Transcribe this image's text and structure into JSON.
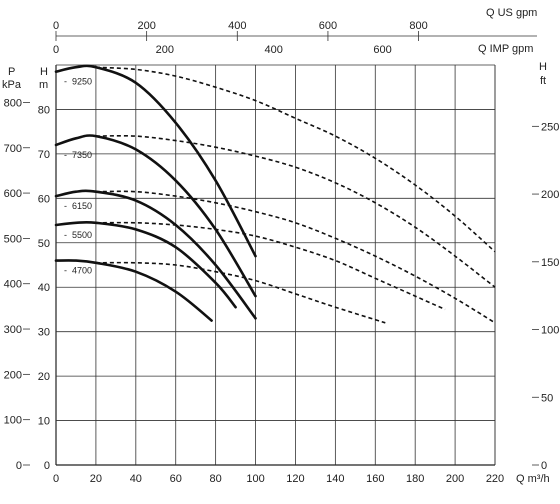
{
  "chart_data": {
    "type": "line",
    "title": "",
    "grid": true,
    "axes": {
      "x_bottom": {
        "label": "Q m³/h",
        "range": [
          0,
          220
        ],
        "ticks": [
          "0",
          "20",
          "40",
          "60",
          "80",
          "100",
          "120",
          "140",
          "160",
          "180",
          "200",
          "220"
        ]
      },
      "x_top_us": {
        "label": "Q US gpm",
        "range": [
          0,
          968.6
        ],
        "ticks": [
          "0",
          "200",
          "400",
          "600",
          "800"
        ]
      },
      "x_top_imp": {
        "label": "Q IMP gpm",
        "range": [
          0,
          806.5
        ],
        "ticks": [
          "0",
          "200",
          "400",
          "600"
        ]
      },
      "y_kpa": {
        "label_line1": "P",
        "label_line2": "kPa",
        "ticks": [
          "0",
          "100",
          "200",
          "300",
          "400",
          "500",
          "600",
          "700",
          "800"
        ]
      },
      "y_m": {
        "label": "H m",
        "label_line1": "H",
        "label_line2": "m",
        "range": [
          0,
          90
        ],
        "ticks": [
          "0",
          "10",
          "20",
          "30",
          "40",
          "50",
          "60",
          "70",
          "80"
        ]
      },
      "y_ft": {
        "label_line1": "H",
        "label_line2": "ft",
        "ticks": [
          "0",
          "50",
          "100",
          "150",
          "200",
          "250"
        ]
      }
    },
    "series": [
      {
        "name": "9250",
        "solid": {
          "x": [
            0,
            10,
            20,
            40,
            60,
            80,
            100
          ],
          "y": [
            88.5,
            89.5,
            89.5,
            86,
            77,
            64,
            47
          ]
        },
        "dashed": {
          "x": [
            20,
            40,
            60,
            80,
            100,
            120,
            140,
            160,
            180,
            200,
            220
          ],
          "y": [
            89.5,
            89,
            87.5,
            85,
            82,
            78,
            74,
            69,
            63,
            56,
            48
          ]
        }
      },
      {
        "name": "7350",
        "solid": {
          "x": [
            0,
            10,
            20,
            40,
            60,
            80,
            100
          ],
          "y": [
            72,
            73.5,
            74,
            71,
            64,
            53,
            38
          ]
        },
        "dashed": {
          "x": [
            20,
            40,
            60,
            80,
            100,
            120,
            140,
            160,
            180,
            200,
            220
          ],
          "y": [
            74,
            74,
            73,
            71.5,
            69.5,
            67,
            63.5,
            59,
            53.5,
            47,
            40
          ]
        }
      },
      {
        "name": "6150",
        "solid": {
          "x": [
            0,
            10,
            20,
            40,
            60,
            80,
            100
          ],
          "y": [
            60.5,
            61.5,
            61.5,
            59.5,
            54,
            45,
            33
          ]
        },
        "dashed": {
          "x": [
            20,
            40,
            60,
            80,
            100,
            120,
            140,
            160,
            180,
            200,
            220
          ],
          "y": [
            61.5,
            61.5,
            60.5,
            59,
            57,
            54.5,
            51,
            47,
            42.5,
            37.5,
            32
          ]
        }
      },
      {
        "name": "5500",
        "solid": {
          "x": [
            0,
            10,
            20,
            40,
            60,
            80,
            90
          ],
          "y": [
            54,
            54.5,
            54.5,
            53,
            49,
            41,
            35.5
          ]
        },
        "dashed": {
          "x": [
            20,
            40,
            60,
            80,
            100,
            120,
            140,
            160,
            180,
            195
          ],
          "y": [
            54.5,
            54.5,
            54,
            53,
            51.5,
            49,
            46,
            42,
            38,
            35
          ]
        }
      },
      {
        "name": "4700",
        "solid": {
          "x": [
            0,
            10,
            20,
            40,
            60,
            78
          ],
          "y": [
            46,
            46,
            45.5,
            43.5,
            39,
            32.5
          ]
        },
        "dashed": {
          "x": [
            20,
            40,
            60,
            80,
            100,
            120,
            140,
            165
          ],
          "y": [
            45.5,
            45.5,
            45,
            43.5,
            41.5,
            38.5,
            35.5,
            32
          ]
        }
      }
    ]
  }
}
